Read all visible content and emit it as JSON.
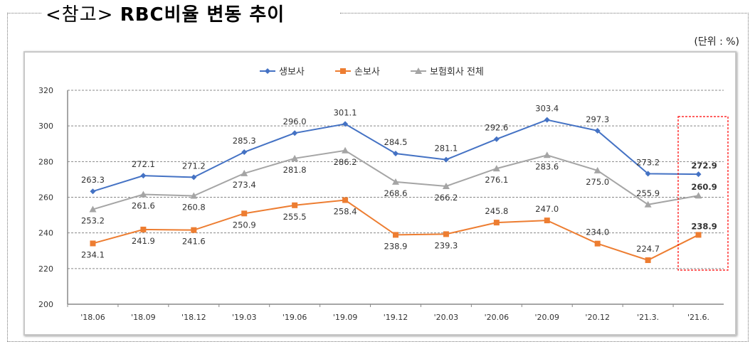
{
  "header": {
    "prefix": "<참고>",
    "title": "RBC비율 변동 추이",
    "unit": "(단위 : %)"
  },
  "chart_data": {
    "type": "line",
    "title": "RBC비율 변동 추이",
    "xlabel": "",
    "ylabel": "",
    "ylim": [
      200,
      320
    ],
    "yticks": [
      200,
      220,
      240,
      260,
      280,
      300,
      320
    ],
    "grid": true,
    "legend_position": "top-center",
    "categories": [
      "'18.06",
      "'18.09",
      "'18.12",
      "'19.03",
      "'19.06",
      "'19.09",
      "'19.12",
      "'20.03",
      "'20.06",
      "'20.09",
      "'20.12",
      "'21.3.",
      "'21.6."
    ],
    "series": [
      {
        "name": "생보사",
        "color": "#4472C4",
        "marker": "diamond",
        "values": [
          263.3,
          272.1,
          271.2,
          285.3,
          296.0,
          301.1,
          284.5,
          281.1,
          292.6,
          303.4,
          297.3,
          273.2,
          272.9
        ]
      },
      {
        "name": "손보사",
        "color": "#ED7D31",
        "marker": "square",
        "values": [
          234.1,
          241.9,
          241.6,
          250.9,
          255.5,
          258.4,
          238.9,
          239.3,
          245.8,
          247.0,
          234.0,
          224.7,
          238.9
        ]
      },
      {
        "name": "보험회사 전체",
        "color": "#A5A5A5",
        "marker": "triangle",
        "values": [
          253.2,
          261.6,
          260.8,
          273.4,
          281.8,
          286.2,
          268.6,
          266.2,
          276.1,
          283.6,
          275.0,
          255.9,
          260.9
        ]
      }
    ],
    "highlight": {
      "category": "'21.6.",
      "color": "#FF0000"
    }
  }
}
